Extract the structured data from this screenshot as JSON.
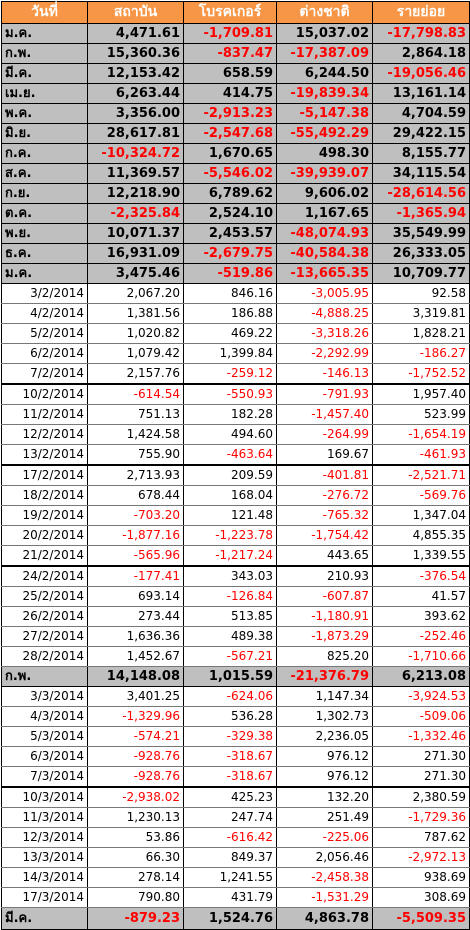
{
  "headers": [
    "วันที่",
    "สถาบัน",
    "โบรคเกอร์",
    "ต่างชาติ",
    "รายย่อย"
  ],
  "colors": {
    "header_bg": "#f79646",
    "month_bg": "#bfbfbf",
    "negative": "#ff0000"
  },
  "rows": [
    {
      "type": "month",
      "cells": [
        "ม.ค.",
        "4,471.61",
        "-1,709.81",
        "15,037.02",
        "-17,798.83"
      ]
    },
    {
      "type": "month",
      "cells": [
        "ก.พ.",
        "15,360.36",
        "-837.47",
        "-17,387.09",
        "2,864.18"
      ]
    },
    {
      "type": "month",
      "cells": [
        "มี.ค.",
        "12,153.42",
        "658.59",
        "6,244.50",
        "-19,056.46"
      ]
    },
    {
      "type": "month",
      "cells": [
        "เม.ย.",
        "6,263.44",
        "414.75",
        "-19,839.34",
        "13,161.14"
      ]
    },
    {
      "type": "month",
      "cells": [
        "พ.ค.",
        "3,356.00",
        "-2,913.23",
        "-5,147.38",
        "4,704.59"
      ]
    },
    {
      "type": "month",
      "cells": [
        "มิ.ย.",
        "28,617.81",
        "-2,547.68",
        "-55,492.29",
        "29,422.15"
      ]
    },
    {
      "type": "month",
      "cells": [
        "ก.ค.",
        "-10,324.72",
        "1,670.65",
        "498.30",
        "8,155.77"
      ]
    },
    {
      "type": "month",
      "cells": [
        "ส.ค.",
        "11,369.57",
        "-5,546.02",
        "-39,939.07",
        "34,115.54"
      ]
    },
    {
      "type": "month",
      "cells": [
        "ก.ย.",
        "12,218.90",
        "6,789.62",
        "9,606.02",
        "-28,614.56"
      ]
    },
    {
      "type": "month",
      "cells": [
        "ต.ค.",
        "-2,325.84",
        "2,524.10",
        "1,167.65",
        "-1,365.94"
      ]
    },
    {
      "type": "month",
      "cells": [
        "พ.ย.",
        "10,071.37",
        "2,453.57",
        "-48,074.93",
        "35,549.99"
      ]
    },
    {
      "type": "month",
      "cells": [
        "ธ.ค.",
        "16,931.09",
        "-2,679.75",
        "-40,584.38",
        "26,333.05"
      ]
    },
    {
      "type": "month",
      "cells": [
        "ม.ค.",
        "3,475.46",
        "-519.86",
        "-13,665.35",
        "10,709.77"
      ]
    },
    {
      "type": "daily",
      "cells": [
        "3/2/2014",
        "2,067.20",
        "846.16",
        "-3,005.95",
        "92.58"
      ]
    },
    {
      "type": "daily",
      "cells": [
        "4/2/2014",
        "1,381.56",
        "186.88",
        "-4,888.25",
        "3,319.81"
      ]
    },
    {
      "type": "daily",
      "cells": [
        "5/2/2014",
        "1,020.82",
        "469.22",
        "-3,318.26",
        "1,828.21"
      ]
    },
    {
      "type": "daily",
      "cells": [
        "6/2/2014",
        "1,079.42",
        "1,399.84",
        "-2,292.99",
        "-186.27"
      ]
    },
    {
      "type": "daily",
      "cells": [
        "7/2/2014",
        "2,157.76",
        "-259.12",
        "-146.13",
        "-1,752.52"
      ]
    },
    {
      "type": "daily",
      "gap": true,
      "cells": [
        "10/2/2014",
        "-614.54",
        "-550.93",
        "-791.93",
        "1,957.40"
      ]
    },
    {
      "type": "daily",
      "cells": [
        "11/2/2014",
        "751.13",
        "182.28",
        "-1,457.40",
        "523.99"
      ]
    },
    {
      "type": "daily",
      "cells": [
        "12/2/2014",
        "1,424.58",
        "494.60",
        "-264.99",
        "-1,654.19"
      ]
    },
    {
      "type": "daily",
      "cells": [
        "13/2/2014",
        "755.90",
        "-463.64",
        "169.67",
        "-461.93"
      ]
    },
    {
      "type": "daily",
      "gap": true,
      "cells": [
        "17/2/2014",
        "2,713.93",
        "209.59",
        "-401.81",
        "-2,521.71"
      ]
    },
    {
      "type": "daily",
      "cells": [
        "18/2/2014",
        "678.44",
        "168.04",
        "-276.72",
        "-569.76"
      ]
    },
    {
      "type": "daily",
      "cells": [
        "19/2/2014",
        "-703.20",
        "121.48",
        "-765.32",
        "1,347.04"
      ]
    },
    {
      "type": "daily",
      "cells": [
        "20/2/2014",
        "-1,877.16",
        "-1,223.78",
        "-1,754.42",
        "4,855.35"
      ]
    },
    {
      "type": "daily",
      "cells": [
        "21/2/2014",
        "-565.96",
        "-1,217.24",
        "443.65",
        "1,339.55"
      ]
    },
    {
      "type": "daily",
      "gap": true,
      "cells": [
        "24/2/2014",
        "-177.41",
        "343.03",
        "210.93",
        "-376.54"
      ]
    },
    {
      "type": "daily",
      "cells": [
        "25/2/2014",
        "693.14",
        "-126.84",
        "-607.87",
        "41.57"
      ]
    },
    {
      "type": "daily",
      "cells": [
        "26/2/2014",
        "273.44",
        "513.85",
        "-1,180.91",
        "393.62"
      ]
    },
    {
      "type": "daily",
      "cells": [
        "27/2/2014",
        "1,636.36",
        "489.38",
        "-1,873.29",
        "-252.46"
      ]
    },
    {
      "type": "daily",
      "cells": [
        "28/2/2014",
        "1,452.67",
        "-567.21",
        "825.20",
        "-1,710.66"
      ]
    },
    {
      "type": "month",
      "cells": [
        "ก.พ.",
        "14,148.08",
        "1,015.59",
        "-21,376.79",
        "6,213.08"
      ]
    },
    {
      "type": "daily",
      "cells": [
        "3/3/2014",
        "3,401.25",
        "-624.06",
        "1,147.34",
        "-3,924.53"
      ]
    },
    {
      "type": "daily",
      "cells": [
        "4/3/2014",
        "-1,329.96",
        "536.28",
        "1,302.73",
        "-509.06"
      ]
    },
    {
      "type": "daily",
      "cells": [
        "5/3/2014",
        "-574.21",
        "-329.38",
        "2,236.05",
        "-1,332.46"
      ]
    },
    {
      "type": "daily",
      "cells": [
        "6/3/2014",
        "-928.76",
        "-318.67",
        "976.12",
        "271.30"
      ]
    },
    {
      "type": "daily",
      "cells": [
        "7/3/2014",
        "-928.76",
        "-318.67",
        "976.12",
        "271.30"
      ]
    },
    {
      "type": "daily",
      "gap": true,
      "cells": [
        "10/3/2014",
        "-2,938.02",
        "425.23",
        "132.20",
        "2,380.59"
      ]
    },
    {
      "type": "daily",
      "cells": [
        "11/3/2014",
        "1,230.13",
        "247.74",
        "251.49",
        "-1,729.36"
      ]
    },
    {
      "type": "daily",
      "cells": [
        "12/3/2014",
        "53.86",
        "-616.42",
        "-225.06",
        "787.62"
      ]
    },
    {
      "type": "daily",
      "cells": [
        "13/3/2014",
        "66.30",
        "849.37",
        "2,056.46",
        "-2,972.13"
      ]
    },
    {
      "type": "daily",
      "cells": [
        "14/3/2014",
        "278.14",
        "1,241.55",
        "-2,458.38",
        "938.69"
      ]
    },
    {
      "type": "daily",
      "cells": [
        "17/3/2014",
        "790.80",
        "431.79",
        "-1,531.29",
        "308.69"
      ]
    },
    {
      "type": "month",
      "total": true,
      "cells": [
        "มี.ค.",
        "-879.23",
        "1,524.76",
        "4,863.78",
        "-5,509.35"
      ]
    }
  ]
}
